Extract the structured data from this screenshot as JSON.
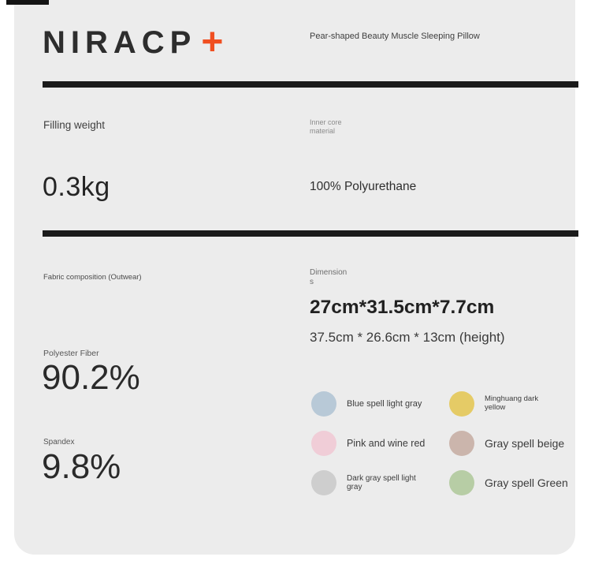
{
  "brand": {
    "logo_text": "NIRACP",
    "logo_plus": "+"
  },
  "product": {
    "name": "Pear-shaped Beauty Muscle Sleeping Pillow"
  },
  "specs": {
    "filling_weight": {
      "label": "Filling weight",
      "value": "0.3kg"
    },
    "inner_core": {
      "label": "Inner core material",
      "value": "100% Polyurethane"
    },
    "fabric": {
      "label": "Fabric composition (Outwear)",
      "components": [
        {
          "name": "Polyester Fiber",
          "value": "90.2%"
        },
        {
          "name": "Spandex",
          "value": "9.8%"
        }
      ]
    },
    "dimensions": {
      "label": "Dimensions",
      "primary": "27cm*31.5cm*7.7cm",
      "secondary": "37.5cm * 26.6cm * 13cm (height)"
    }
  },
  "colors": {
    "swatches": [
      {
        "name": "Blue spell light gray",
        "hex": "#b8c9d7"
      },
      {
        "name": "Minghuang dark yellow",
        "hex": "#e5cb66"
      },
      {
        "name": "Pink and wine red",
        "hex": "#f0cdd7"
      },
      {
        "name": "Gray spell beige",
        "hex": "#cbb5ac"
      },
      {
        "name": "Dark gray spell light gray",
        "hex": "#cecece"
      },
      {
        "name": "Gray spell Green",
        "hex": "#b7cda5"
      }
    ]
  },
  "theme": {
    "accent_orange": "#f04f21",
    "card_bg": "#ececec",
    "divider": "#1b1b1b",
    "text_dark": "#2a2a2a"
  }
}
